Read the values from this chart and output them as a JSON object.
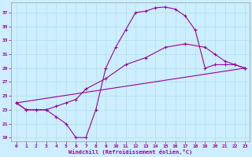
{
  "xlabel": "Windchill (Refroidissement éolien,°C)",
  "background_color": "#cceeff",
  "line_color": "#990099",
  "xlim": [
    -0.5,
    23.5
  ],
  "ylim": [
    18.5,
    38.5
  ],
  "yticks": [
    19,
    21,
    23,
    25,
    27,
    29,
    31,
    33,
    35,
    37
  ],
  "xticks": [
    0,
    1,
    2,
    3,
    4,
    5,
    6,
    7,
    8,
    9,
    10,
    11,
    12,
    13,
    14,
    15,
    16,
    17,
    18,
    19,
    20,
    21,
    22,
    23
  ],
  "line1_x": [
    0,
    1,
    2,
    3,
    4,
    5,
    6,
    7,
    8,
    9,
    10,
    11,
    12,
    13,
    14,
    15,
    16,
    17,
    18,
    19,
    20,
    21,
    22,
    23
  ],
  "line1_y": [
    24,
    23,
    23,
    23,
    22,
    21,
    19,
    19,
    23,
    29,
    32,
    34.5,
    37,
    37.2,
    37.7,
    37.8,
    37.5,
    36.5,
    34.5,
    29,
    29.5,
    29.5,
    29.5,
    29
  ],
  "line2_x": [
    0,
    1,
    2,
    3,
    4,
    5,
    6,
    7,
    9,
    11,
    13,
    15,
    17,
    19,
    20,
    21,
    22,
    23
  ],
  "line2_y": [
    24,
    23,
    23,
    23,
    23.5,
    24,
    24.5,
    26,
    27.5,
    29.5,
    30.5,
    32,
    32.5,
    32,
    31,
    30,
    29.5,
    29
  ],
  "line3_x": [
    0,
    23
  ],
  "line3_y": [
    24,
    29
  ],
  "marker": "+"
}
